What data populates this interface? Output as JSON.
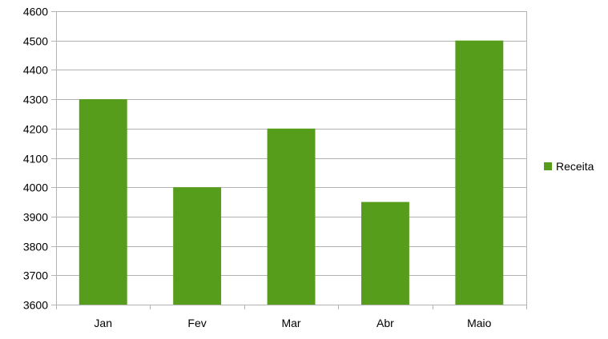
{
  "chart_data": {
    "type": "bar",
    "categories": [
      "Jan",
      "Fev",
      "Mar",
      "Abr",
      "Maio"
    ],
    "series": [
      {
        "name": "Receita",
        "values": [
          4300,
          4000,
          4200,
          3950,
          4500
        ],
        "color": "#579d1c"
      }
    ],
    "ylim": [
      3600,
      4600
    ],
    "y_ticks": [
      "3600",
      "3700",
      "3800",
      "3900",
      "4000",
      "4100",
      "4200",
      "4300",
      "4400",
      "4500",
      "4600"
    ],
    "grid": "horizontal",
    "legend": "right",
    "title": "",
    "xlabel": "",
    "ylabel": ""
  },
  "colors": {
    "gridline": "#b3b3b3",
    "axis": "#b3b3b3",
    "background": "#ffffff"
  }
}
